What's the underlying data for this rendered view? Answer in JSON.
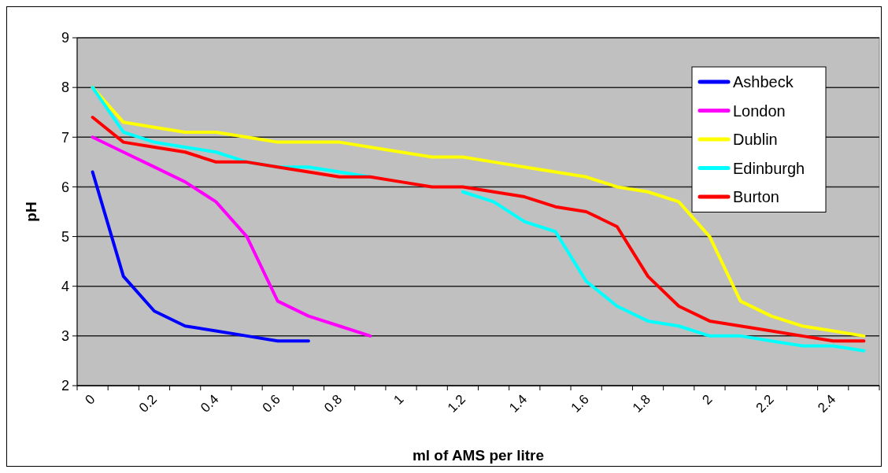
{
  "chart_data": {
    "type": "line",
    "xlabel": "ml of AMS per litre",
    "ylabel": "pH",
    "categories": [
      "0",
      null,
      "0.2",
      null,
      "0.4",
      null,
      "0.6",
      null,
      "0.8",
      null,
      "1",
      null,
      "1.2",
      null,
      "1.4",
      null,
      "1.6",
      null,
      "1.8",
      null,
      "2",
      null,
      "2.2",
      null,
      "2.4",
      null
    ],
    "series": [
      {
        "name": "Ashbeck",
        "color": "#0000ff",
        "values": [
          6.3,
          4.2,
          3.5,
          3.2,
          3.1,
          3.0,
          2.9,
          2.9,
          null,
          null,
          null,
          null,
          null,
          null,
          null,
          null,
          null,
          null,
          null,
          null,
          null,
          null,
          null,
          null,
          null,
          null
        ]
      },
      {
        "name": "London",
        "color": "#ff00ff",
        "values": [
          7.0,
          6.7,
          6.4,
          6.1,
          5.7,
          5.0,
          3.7,
          3.4,
          3.2,
          3.0,
          null,
          null,
          null,
          null,
          null,
          null,
          null,
          null,
          null,
          null,
          null,
          null,
          null,
          null,
          null,
          null
        ]
      },
      {
        "name": "Dublin",
        "color": "#ffff00",
        "values": [
          8.0,
          7.3,
          7.2,
          7.1,
          7.1,
          7.0,
          6.9,
          6.9,
          6.9,
          6.8,
          6.7,
          6.6,
          6.6,
          6.5,
          6.4,
          6.3,
          6.2,
          6.0,
          5.9,
          5.7,
          5.0,
          3.7,
          3.4,
          3.2,
          3.1,
          3.0
        ]
      },
      {
        "name": "Edinburgh",
        "color": "#00ffff",
        "values": [
          8.0,
          7.1,
          6.9,
          6.8,
          6.7,
          6.5,
          6.4,
          6.4,
          6.3,
          6.2,
          null,
          null,
          5.9,
          5.7,
          5.3,
          5.1,
          4.1,
          3.6,
          3.3,
          3.2,
          3.0,
          3.0,
          2.9,
          2.8,
          2.8,
          2.7
        ]
      },
      {
        "name": "Burton",
        "color": "#ff0000",
        "values": [
          7.4,
          6.9,
          6.8,
          6.7,
          6.5,
          6.5,
          6.4,
          6.3,
          6.2,
          6.2,
          6.1,
          6.0,
          6.0,
          5.9,
          5.8,
          5.6,
          5.5,
          5.2,
          4.2,
          3.6,
          3.3,
          3.2,
          3.1,
          3.0,
          2.9,
          2.9
        ]
      }
    ],
    "ylim": [
      2,
      9
    ],
    "yticks": [
      2,
      3,
      4,
      5,
      6,
      7,
      8,
      9
    ],
    "grid": "y",
    "legend": "top right",
    "marker": "none",
    "line_style": "solid"
  }
}
